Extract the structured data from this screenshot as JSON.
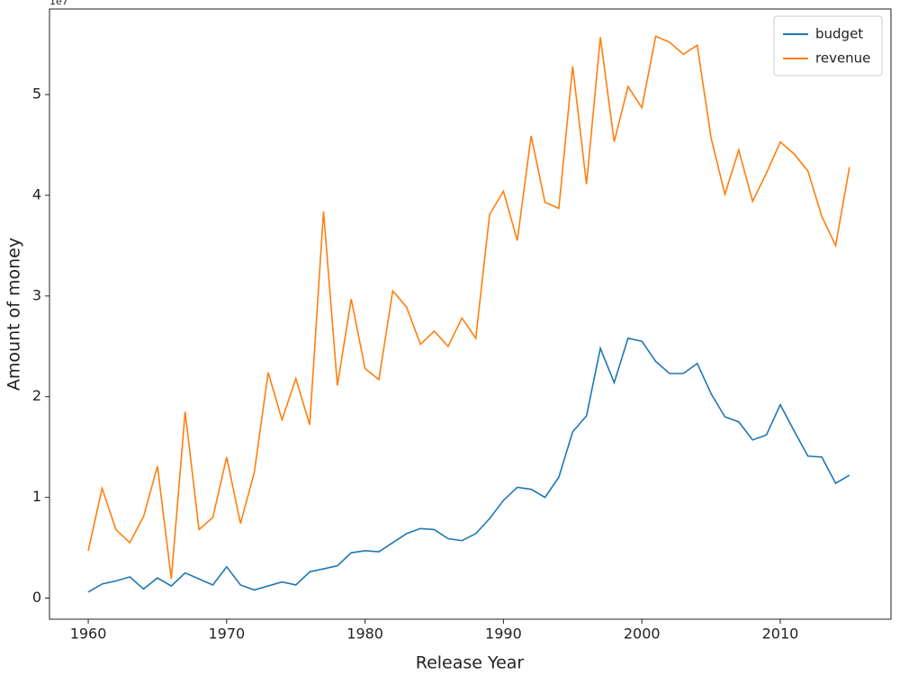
{
  "chart_data": {
    "type": "line",
    "xlabel": "Release Year",
    "ylabel": "Amount of money",
    "y_offset_label": "1e7",
    "x": [
      1960,
      1961,
      1962,
      1963,
      1964,
      1965,
      1966,
      1967,
      1968,
      1969,
      1970,
      1971,
      1972,
      1973,
      1974,
      1975,
      1976,
      1977,
      1978,
      1979,
      1980,
      1981,
      1982,
      1983,
      1984,
      1985,
      1986,
      1987,
      1988,
      1989,
      1990,
      1991,
      1992,
      1993,
      1994,
      1995,
      1996,
      1997,
      1998,
      1999,
      2000,
      2001,
      2002,
      2003,
      2004,
      2005,
      2006,
      2007,
      2008,
      2009,
      2010,
      2011,
      2012,
      2013,
      2014,
      2015
    ],
    "series": [
      {
        "name": "budget",
        "color": "#1f77b4",
        "values": [
          0.06,
          0.14,
          0.17,
          0.21,
          0.09,
          0.2,
          0.12,
          0.25,
          0.19,
          0.13,
          0.31,
          0.13,
          0.08,
          0.12,
          0.16,
          0.13,
          0.26,
          0.29,
          0.32,
          0.45,
          0.47,
          0.46,
          0.55,
          0.64,
          0.69,
          0.68,
          0.59,
          0.57,
          0.64,
          0.79,
          0.97,
          1.1,
          1.08,
          1.0,
          1.2,
          1.65,
          1.81,
          2.48,
          2.14,
          2.58,
          2.55,
          2.35,
          2.23,
          2.23,
          2.33,
          2.03,
          1.8,
          1.75,
          1.57,
          1.62,
          1.92,
          1.66,
          1.41,
          1.4,
          1.14,
          1.22
        ]
      },
      {
        "name": "revenue",
        "color": "#ff7f0e",
        "values": [
          0.47,
          1.09,
          0.68,
          0.55,
          0.81,
          1.31,
          0.19,
          1.85,
          0.68,
          0.8,
          1.4,
          0.74,
          1.25,
          2.24,
          1.77,
          2.18,
          1.72,
          3.84,
          2.11,
          2.97,
          2.28,
          2.17,
          3.05,
          2.89,
          2.52,
          2.65,
          2.5,
          2.78,
          2.58,
          3.81,
          4.04,
          3.55,
          4.59,
          3.93,
          3.87,
          5.28,
          4.11,
          5.57,
          4.53,
          5.08,
          4.87,
          5.58,
          5.52,
          5.4,
          5.49,
          4.57,
          4.01,
          4.45,
          3.94,
          4.22,
          4.53,
          4.41,
          4.24,
          3.79,
          3.5,
          4.28
        ]
      }
    ],
    "xlim": [
      1957.2,
      2018
    ],
    "xticks": [
      1960,
      1970,
      1980,
      1990,
      2000,
      2010
    ],
    "ylim": [
      -0.21,
      5.85
    ],
    "yticks": [
      0,
      1,
      2,
      3,
      4,
      5
    ],
    "legend": "upper right",
    "grid": false
  }
}
